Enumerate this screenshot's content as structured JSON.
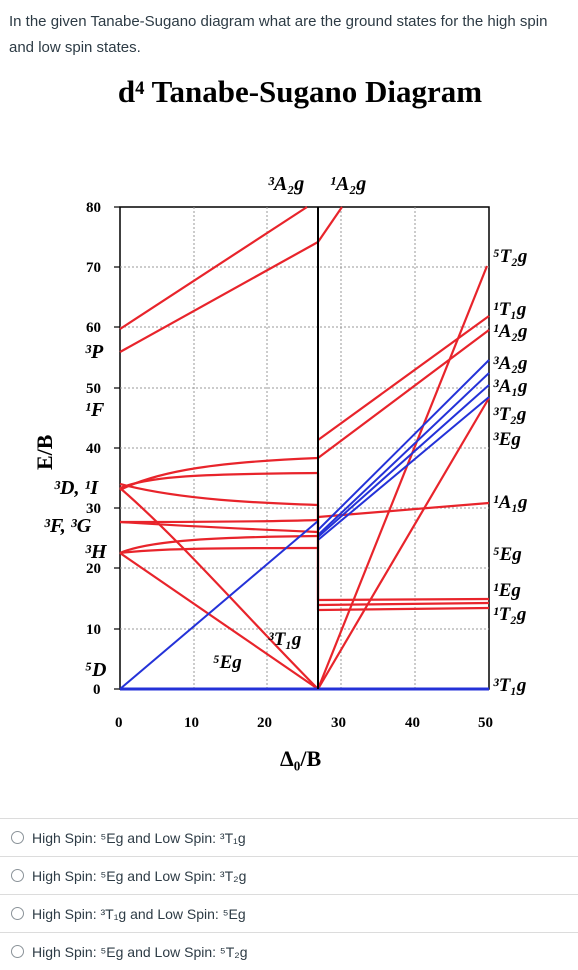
{
  "question": {
    "text": "In the given Tanabe-Sugano diagram what are the  ground states for the high spin and low spin states."
  },
  "diagram": {
    "title": "d⁴ Tanabe-Sugano Diagram",
    "y_axis_label": "E/B",
    "x_axis_label": "Δ₀/B",
    "y_ticks": [
      "80",
      "70",
      "60",
      "50",
      "40",
      "30",
      "20",
      "10",
      "0"
    ],
    "x_ticks": [
      "0",
      "10",
      "20",
      "30",
      "40",
      "50"
    ],
    "left_terms": [
      "³P",
      "¹F",
      "³D, ¹I",
      "³F, ³G",
      "³H",
      "⁵D"
    ],
    "top_terms": [
      "³A₂g",
      "¹A₂g"
    ],
    "right_terms": [
      "⁵T₂g",
      "¹T₁g",
      "¹A₂g",
      "³A₂g",
      "³A₁g",
      "³T₂g",
      "³Eg",
      "¹A₁g",
      "⁵Eg",
      "¹Eg",
      "¹T₂g",
      "³T₁g"
    ],
    "inner_terms": [
      "³T₁g",
      "⁵Eg"
    ],
    "colors": {
      "red": "#e8242b",
      "blue": "#2432d8",
      "grid": "#999999"
    }
  },
  "options": [
    {
      "label": "High Spin: ⁵Eg and Low Spin: ³T₁g"
    },
    {
      "label": "High Spin: ⁵Eg and Low Spin: ³T₂g"
    },
    {
      "label": "High Spin: ³T₁g and Low Spin: ⁵Eg"
    },
    {
      "label": "High Spin: ⁵Eg and Low Spin: ⁵T₂g"
    }
  ]
}
